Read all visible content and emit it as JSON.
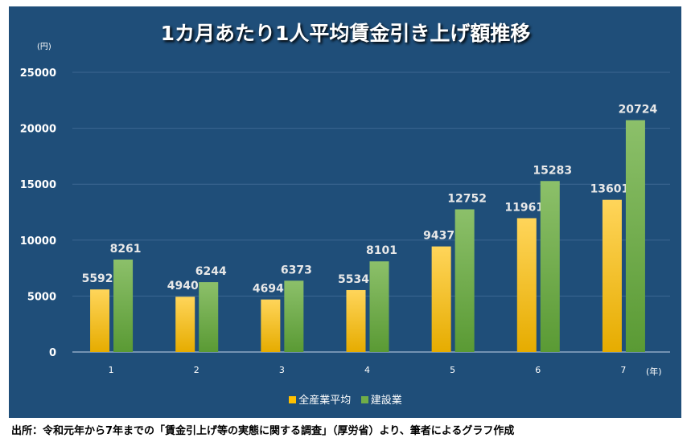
{
  "chart_data": {
    "type": "bar",
    "title": "1カ月あたり1人平均賃金引き上げ額推移",
    "ylabel": "(円)",
    "xlabel": "(年)",
    "categories": [
      "1",
      "2",
      "3",
      "4",
      "5",
      "6",
      "7"
    ],
    "ylim": [
      0,
      25000
    ],
    "yticks": [
      0,
      5000,
      10000,
      15000,
      20000,
      25000
    ],
    "grid": true,
    "legend_position": "bottom",
    "series": [
      {
        "name": "全産業平均",
        "values": [
          5592,
          4940,
          4694,
          5534,
          9437,
          11961,
          13601
        ],
        "color": "#ffc000"
      },
      {
        "name": "建設業",
        "values": [
          8261,
          6244,
          6373,
          8101,
          12752,
          15283,
          20724
        ],
        "color": "#70ad47"
      }
    ]
  },
  "source": "出所：令和元年から7年までの「賃金引上げ等の実態に関する調査」（厚労省）より、筆者によるグラフ作成"
}
